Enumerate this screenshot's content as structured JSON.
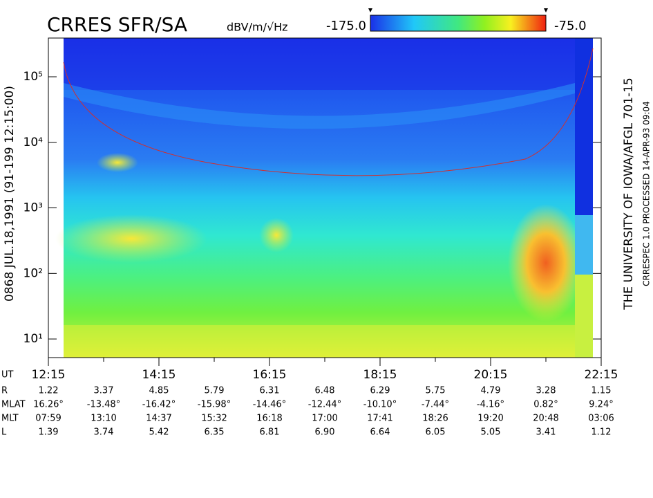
{
  "chart_data": {
    "type": "spectrogram",
    "title": "CRRES SFR/SA",
    "colorbar_label": "dBV/m/√Hz",
    "clim": [
      -175,
      -75
    ],
    "colorbar_ticks": [
      {
        "value": -175,
        "label": "-175.0"
      },
      {
        "value": -75,
        "label": "-75.0"
      }
    ],
    "ylabel": "0868  JUL.18,1991  (91-199 12:15:00)",
    "right_label": "THE UNIVERSITY OF IOWA/AFGL 701-15",
    "processed_label": "CRRESPEC 1.0   PROCESSED 14-APR-93  09:04",
    "log_y": true,
    "ylim": [
      5.2,
      390000
    ],
    "yticks": [
      {
        "value": 10,
        "label": "10¹"
      },
      {
        "value": 100,
        "label": "10²"
      },
      {
        "value": 1000,
        "label": "10³"
      },
      {
        "value": 10000,
        "label": "10⁴"
      },
      {
        "value": 100000,
        "label": "10⁵"
      }
    ],
    "x_row_label": "UT",
    "categories": [
      "12:15",
      null,
      "14:15",
      null,
      "16:15",
      null,
      "18:15",
      null,
      "20:15",
      null,
      "22:15"
    ],
    "ephemeris": [
      {
        "name": "R",
        "values": [
          "1.22",
          "3.37",
          "4.85",
          "5.79",
          "6.31",
          "6.48",
          "6.29",
          "5.75",
          "4.79",
          "3.28",
          "1.15"
        ]
      },
      {
        "name": "MLAT",
        "values": [
          "16.26°",
          "-13.48°",
          "-16.42°",
          "-15.98°",
          "-14.46°",
          "-12.44°",
          "-10.10°",
          "-7.44°",
          "-4.16°",
          "0.82°",
          "9.24°"
        ]
      },
      {
        "name": "MLT",
        "values": [
          "07:59",
          "13:10",
          "14:37",
          "15:32",
          "16:18",
          "17:00",
          "17:41",
          "18:26",
          "19:20",
          "20:48",
          "03:06"
        ]
      },
      {
        "name": "L",
        "values": [
          "1.39",
          "3.74",
          "5.42",
          "6.35",
          "6.81",
          "6.90",
          "6.64",
          "6.05",
          "5.05",
          "3.41",
          "1.12"
        ]
      }
    ]
  }
}
